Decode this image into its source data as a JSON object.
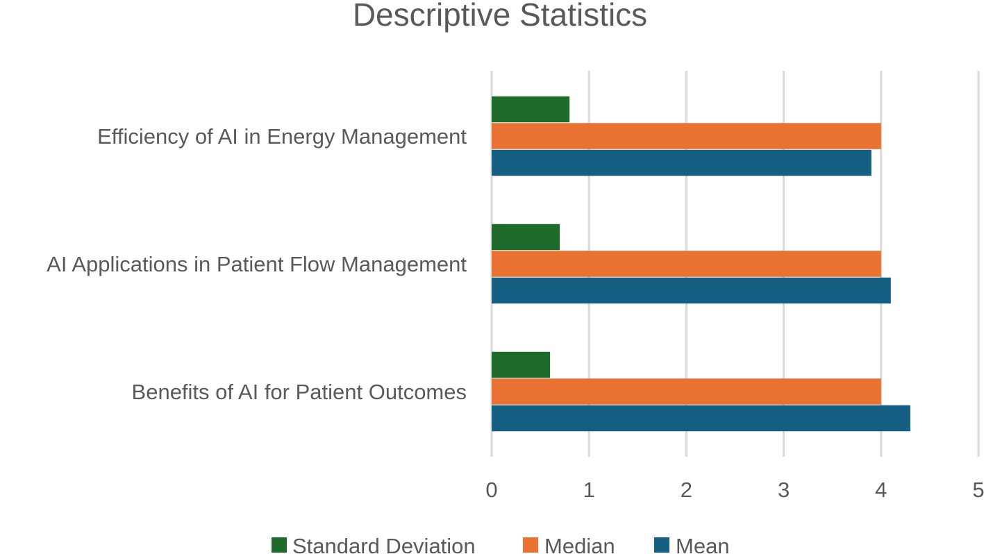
{
  "chart_data": {
    "type": "bar",
    "orientation": "horizontal",
    "title": "Descriptive Statistics",
    "categories": [
      "Efficiency of AI in Energy Management",
      "AI Applications in Patient Flow Management",
      "Benefits of AI for Patient Outcomes"
    ],
    "series": [
      {
        "name": "Standard Deviation",
        "color": "#1e6b2b",
        "values": [
          0.8,
          0.7,
          0.6
        ]
      },
      {
        "name": "Median",
        "color": "#e97132",
        "values": [
          4,
          4,
          4
        ]
      },
      {
        "name": "Mean",
        "color": "#156082",
        "values": [
          3.9,
          4.1,
          4.3
        ]
      }
    ],
    "xlim": [
      0,
      5
    ],
    "xticks": [
      "0",
      "1",
      "2",
      "3",
      "4",
      "5"
    ],
    "xlabel": "",
    "ylabel": "",
    "grid": true,
    "legend_position": "bottom"
  }
}
